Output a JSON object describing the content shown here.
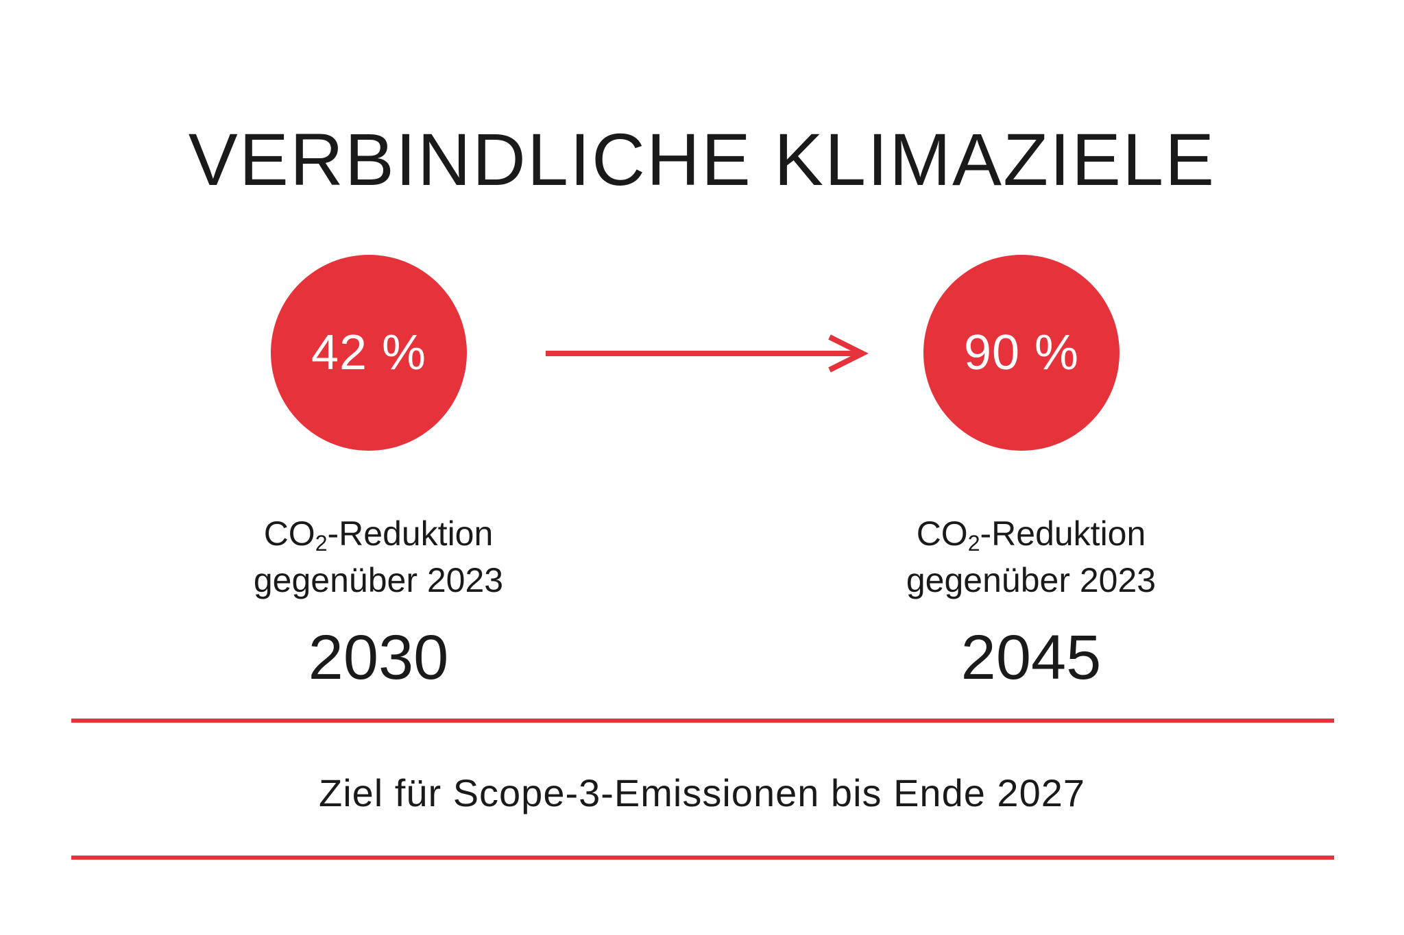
{
  "colors": {
    "accent": "#e5323b",
    "text": "#1a1a1a",
    "background": "#ffffff"
  },
  "title": "VERBINDLICHE KLIMAZIELE",
  "targets": [
    {
      "value": "42 %",
      "desc_prefix": "CO",
      "desc_subscript": "2",
      "desc_suffix": "-Reduktion",
      "desc_line2": "gegenüber 2023",
      "year": "2030"
    },
    {
      "value": "90 %",
      "desc_prefix": "CO",
      "desc_subscript": "2",
      "desc_suffix": "-Reduktion",
      "desc_line2": "gegenüber 2023",
      "year": "2045"
    }
  ],
  "arrow_icon": "arrow-right-icon",
  "footer": "Ziel für Scope-3-Emissionen bis Ende 2027"
}
